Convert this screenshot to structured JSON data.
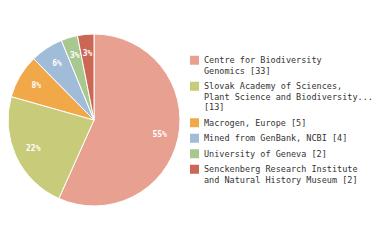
{
  "chart_data": {
    "type": "pie",
    "categories": [
      "Centre for Biodiversity\nGenomics [33]",
      "Slovak Academy of Sciences,\nPlant Science and Biodiversity...\n[13]",
      "Macrogen, Europe [5]",
      "Mined from GenBank, NCBI [4]",
      "University of Geneva [2]",
      "Senckenberg Research Institute\nand Natural History Museum [2]"
    ],
    "values": [
      55,
      22,
      8,
      6,
      3,
      3
    ],
    "value_labels": [
      "55%",
      "22%",
      "8%",
      "6%",
      "3%",
      "3%"
    ],
    "colors": [
      "#e8a090",
      "#c8cc7a",
      "#f0a848",
      "#a0bcd8",
      "#a8c890",
      "#cc6655"
    ],
    "data_labels": true,
    "legend": "right"
  }
}
